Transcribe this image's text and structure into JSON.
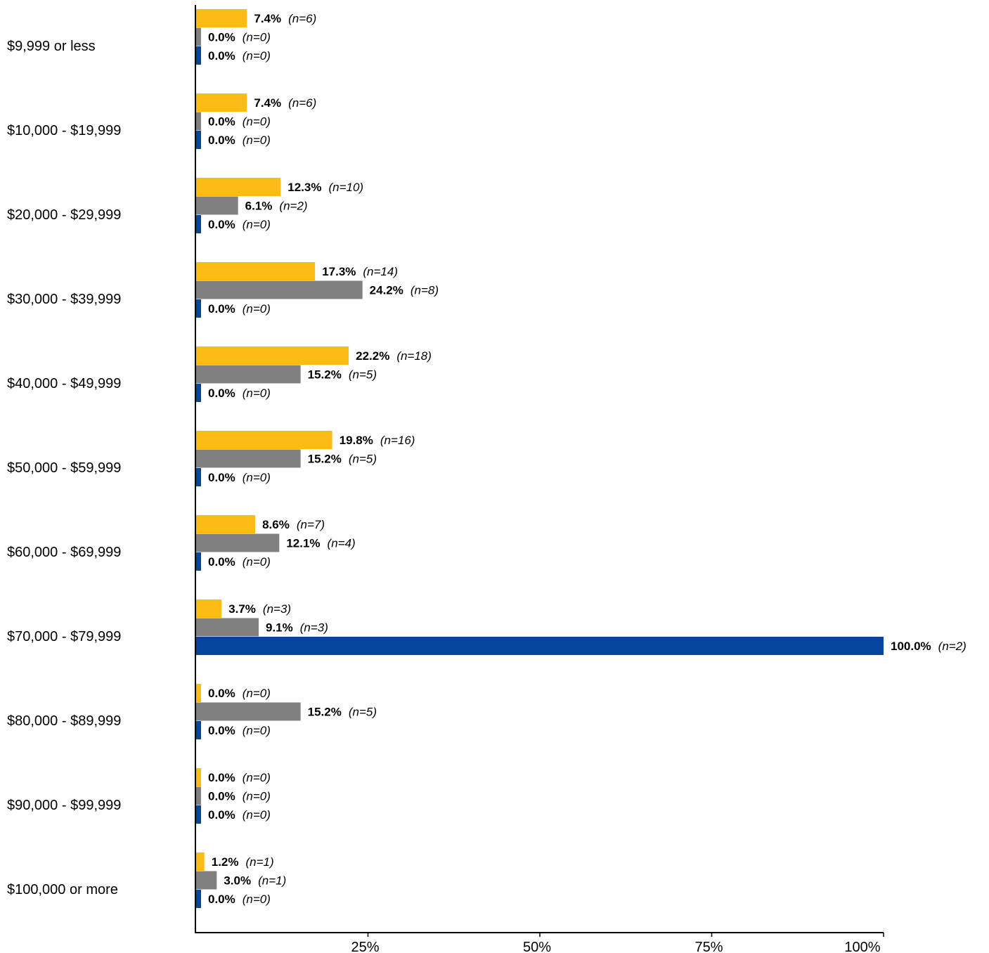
{
  "chart_data": {
    "type": "bar",
    "orientation": "horizontal",
    "categories": [
      "$9,999 or less",
      "$10,000 - $19,999",
      "$20,000 - $29,999",
      "$30,000 - $39,999",
      "$40,000 - $49,999",
      "$50,000 - $59,999",
      "$60,000 - $69,999",
      "$70,000 - $79,999",
      "$80,000 - $89,999",
      "$90,000 - $99,999",
      "$100,000 or more"
    ],
    "series": [
      {
        "color": "#FDBB17",
        "values": [
          7.4,
          7.4,
          12.3,
          17.3,
          22.2,
          19.8,
          8.6,
          3.7,
          0.0,
          0.0,
          1.2
        ],
        "value_labels": [
          "7.4%",
          "7.4%",
          "12.3%",
          "17.3%",
          "22.2%",
          "19.8%",
          "8.6%",
          "3.7%",
          "0.0%",
          "0.0%",
          "1.2%"
        ],
        "n_labels": [
          "(n=6)",
          "(n=6)",
          "(n=10)",
          "(n=14)",
          "(n=18)",
          "(n=16)",
          "(n=7)",
          "(n=3)",
          "(n=0)",
          "(n=0)",
          "(n=1)"
        ]
      },
      {
        "color": "#808080",
        "values": [
          0.0,
          0.0,
          6.1,
          24.2,
          15.2,
          15.2,
          12.1,
          9.1,
          15.2,
          0.0,
          3.0
        ],
        "value_labels": [
          "0.0%",
          "0.0%",
          "6.1%",
          "24.2%",
          "15.2%",
          "15.2%",
          "12.1%",
          "9.1%",
          "15.2%",
          "0.0%",
          "3.0%"
        ],
        "n_labels": [
          "(n=0)",
          "(n=0)",
          "(n=2)",
          "(n=8)",
          "(n=5)",
          "(n=5)",
          "(n=4)",
          "(n=3)",
          "(n=5)",
          "(n=0)",
          "(n=1)"
        ]
      },
      {
        "color": "#05459D",
        "values": [
          0.0,
          0.0,
          0.0,
          0.0,
          0.0,
          0.0,
          0.0,
          100.0,
          0.0,
          0.0,
          0.0
        ],
        "value_labels": [
          "0.0%",
          "0.0%",
          "0.0%",
          "0.0%",
          "0.0%",
          "0.0%",
          "0.0%",
          "100.0%",
          "0.0%",
          "0.0%",
          "0.0%"
        ],
        "n_labels": [
          "(n=0)",
          "(n=0)",
          "(n=0)",
          "(n=0)",
          "(n=0)",
          "(n=0)",
          "(n=0)",
          "(n=2)",
          "(n=0)",
          "(n=0)",
          "(n=0)"
        ]
      }
    ],
    "xlim": [
      0,
      100
    ],
    "xticks": [
      25,
      50,
      75,
      100
    ],
    "xtick_labels": [
      "25%",
      "50%",
      "75%",
      "100%"
    ],
    "title": "",
    "xlabel": "",
    "ylabel": "",
    "grid": false,
    "legend": "none"
  }
}
